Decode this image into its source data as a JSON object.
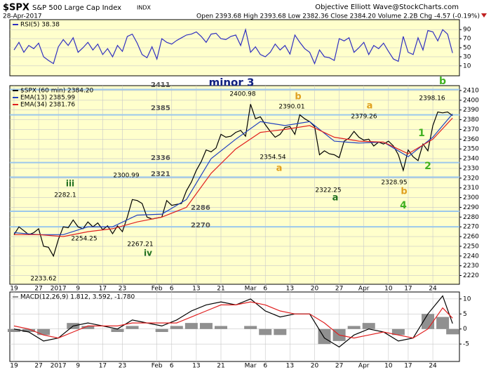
{
  "header": {
    "symbol": "$SPX",
    "name": "S&P 500 Large Cap Index",
    "exchange": "INDX",
    "date": "28-Apr-2017",
    "quote": "Open 2393.68  High 2393.68  Low 2382.36  Close 2384.20  Volume 2.2B  Chg -4.57 (-0.19%)",
    "source": "Objective Elliott Wave@StockCharts.com"
  },
  "chart_data": [
    {
      "type": "line",
      "background": "#ffffcc",
      "xlim": [
        -0.85,
        90.4
      ],
      "ylim": [
        -12,
        112
      ],
      "yticks": [
        10,
        30,
        50,
        70,
        90
      ],
      "series": [
        {
          "name": "RSI(5) 38.38",
          "color": "#3030c0",
          "x": [
            0,
            1,
            2,
            3,
            4,
            5,
            6,
            7,
            8,
            9,
            10,
            11,
            12,
            13,
            14,
            15,
            16,
            17,
            18,
            19,
            20,
            21,
            22,
            23,
            24,
            25,
            26,
            27,
            28,
            29,
            30,
            31,
            32,
            33,
            34,
            35,
            36,
            37,
            38,
            39,
            40,
            41,
            42,
            43,
            44,
            45,
            46,
            47,
            48,
            49,
            50,
            51,
            52,
            53,
            54,
            55,
            56,
            57,
            58,
            59,
            60,
            61,
            62,
            63,
            64,
            65,
            66,
            67,
            68,
            69,
            70,
            71,
            72,
            73,
            74,
            75,
            76,
            77,
            78,
            79,
            80,
            81,
            82,
            83,
            84,
            85,
            86,
            87,
            88,
            89
          ],
          "values": [
            45,
            62,
            40,
            55,
            48,
            60,
            30,
            22,
            15,
            52,
            68,
            55,
            72,
            40,
            50,
            62,
            45,
            58,
            35,
            48,
            30,
            55,
            42,
            75,
            80,
            60,
            35,
            28,
            52,
            25,
            70,
            62,
            58,
            66,
            72,
            78,
            80,
            85,
            75,
            62,
            80,
            82,
            70,
            68,
            75,
            78,
            55,
            90,
            40,
            52,
            35,
            30,
            40,
            58,
            45,
            55,
            36,
            78,
            62,
            48,
            40,
            15,
            45,
            30,
            28,
            22,
            70,
            65,
            72,
            40,
            50,
            62,
            35,
            55,
            48,
            60,
            42,
            25,
            20,
            75,
            40,
            35,
            72,
            45,
            88,
            85,
            65,
            90,
            80,
            38.38
          ]
        }
      ]
    },
    {
      "type": "line",
      "background": "#ffffcc",
      "xlim": [
        -0.85,
        90.4
      ],
      "ylim": [
        2211,
        2415
      ],
      "yticks": [
        2220,
        2230,
        2240,
        2250,
        2260,
        2270,
        2280,
        2290,
        2300,
        2310,
        2320,
        2330,
        2340,
        2350,
        2360,
        2370,
        2380,
        2390,
        2400,
        2410
      ],
      "xticks": [
        {
          "value": 0,
          "label": "19"
        },
        {
          "value": 5,
          "label": "27"
        },
        {
          "value": 9,
          "label": "2017"
        },
        {
          "value": 13,
          "label": "9"
        },
        {
          "value": 18,
          "label": "17"
        },
        {
          "value": 22,
          "label": "23"
        },
        {
          "value": 29,
          "label": "Feb"
        },
        {
          "value": 32,
          "label": "6"
        },
        {
          "value": 37,
          "label": "13"
        },
        {
          "value": 42,
          "label": "21"
        },
        {
          "value": 48,
          "label": "Mar"
        },
        {
          "value": 51,
          "label": "6"
        },
        {
          "value": 56,
          "label": "13"
        },
        {
          "value": 61,
          "label": "20"
        },
        {
          "value": 66,
          "label": "27"
        },
        {
          "value": 71,
          "label": "Apr"
        },
        {
          "value": 76,
          "label": "10"
        },
        {
          "value": 80,
          "label": "17"
        },
        {
          "value": 85,
          "label": "24"
        }
      ],
      "levels": [
        2411,
        2385,
        2336,
        2321,
        2286,
        2270
      ],
      "level_color": "#9cc8ec",
      "series": [
        {
          "name": "$SPX (60 min) 2384.20",
          "color": "#000000",
          "x": [
            0,
            1,
            2,
            3,
            4,
            5,
            6,
            7,
            8,
            9,
            10,
            11,
            12,
            13,
            14,
            15,
            16,
            17,
            18,
            19,
            20,
            21,
            22,
            23,
            24,
            25,
            26,
            27,
            28,
            29,
            30,
            31,
            32,
            33,
            34,
            35,
            36,
            37,
            38,
            39,
            40,
            41,
            42,
            43,
            44,
            45,
            46,
            47,
            48,
            49,
            50,
            51,
            52,
            53,
            54,
            55,
            56,
            57,
            58,
            59,
            60,
            61,
            62,
            63,
            64,
            65,
            66,
            67,
            68,
            69,
            70,
            71,
            72,
            73,
            74,
            75,
            76,
            77,
            78,
            79,
            80,
            81,
            82,
            83,
            84,
            85,
            86,
            87,
            88,
            89
          ],
          "values": [
            2262,
            2270,
            2266,
            2262,
            2264,
            2268,
            2250,
            2249,
            2240,
            2257,
            2270,
            2269,
            2277,
            2270,
            2268,
            2275,
            2270,
            2274,
            2267,
            2271,
            2263,
            2271,
            2265,
            2280,
            2298,
            2297,
            2294,
            2280,
            2278,
            2279,
            2280,
            2297,
            2292,
            2293,
            2294,
            2307,
            2316,
            2328,
            2337,
            2349,
            2347,
            2351,
            2365,
            2362,
            2363,
            2367,
            2369,
            2363,
            2396,
            2381,
            2383,
            2375,
            2368,
            2362,
            2365,
            2372,
            2373,
            2365,
            2385,
            2381,
            2378,
            2373,
            2344,
            2348,
            2345,
            2344,
            2341,
            2358,
            2361,
            2368,
            2362,
            2359,
            2360,
            2353,
            2357,
            2355,
            2358,
            2353,
            2344,
            2328,
            2349,
            2342,
            2338,
            2355,
            2348,
            2374,
            2388,
            2387,
            2388,
            2384.2
          ]
        },
        {
          "name": "EMA(13) 2385.99",
          "color": "#2040c0",
          "x": [
            0,
            5,
            10,
            15,
            20,
            25,
            30,
            35,
            40,
            45,
            50,
            55,
            60,
            65,
            70,
            75,
            80,
            85,
            89
          ],
          "values": [
            2264,
            2262,
            2262,
            2270,
            2270,
            2282,
            2283,
            2298,
            2340,
            2360,
            2378,
            2374,
            2378,
            2358,
            2356,
            2357,
            2342,
            2362,
            2385.99
          ]
        },
        {
          "name": "EMA(34) 2381.76",
          "color": "#e02020",
          "x": [
            0,
            5,
            10,
            15,
            20,
            25,
            30,
            35,
            40,
            45,
            50,
            55,
            60,
            65,
            70,
            75,
            80,
            85,
            89
          ],
          "values": [
            2262,
            2262,
            2260,
            2265,
            2268,
            2275,
            2280,
            2290,
            2325,
            2350,
            2367,
            2370,
            2374,
            2362,
            2358,
            2357,
            2345,
            2360,
            2381.76
          ]
        }
      ],
      "point_labels": [
        2233.62,
        2282.1,
        2300.99,
        2254.25,
        2267.21,
        2400.98,
        2390.01,
        2354.54,
        2322.25,
        2379.26,
        2328.95,
        2398.16
      ],
      "wave_labels": [
        {
          "text": "iii",
          "color": "#207020"
        },
        {
          "text": "iv",
          "color": "#207020"
        },
        {
          "text": "minor 3",
          "color": "#102080"
        },
        {
          "text": "b",
          "color": "#e0a020"
        },
        {
          "text": "a",
          "color": "#e0a020"
        },
        {
          "text": "a",
          "color": "#207020"
        },
        {
          "text": "a",
          "color": "#e0a020"
        },
        {
          "text": "b",
          "color": "#e0a020"
        },
        {
          "text": "4",
          "color": "#40b020"
        },
        {
          "text": "1",
          "color": "#40b020"
        },
        {
          "text": "2",
          "color": "#40b020"
        },
        {
          "text": "b",
          "color": "#40b020"
        }
      ]
    },
    {
      "type": "line",
      "background": "#ffffff",
      "xlim": [
        -0.85,
        90.4
      ],
      "ylim": [
        -10.8,
        12.3
      ],
      "yticks": [
        10,
        5,
        0,
        -5
      ],
      "xticks": [
        {
          "value": 0,
          "label": "19"
        },
        {
          "value": 5,
          "label": "27"
        },
        {
          "value": 9,
          "label": "2017"
        },
        {
          "value": 13,
          "label": "9"
        },
        {
          "value": 18,
          "label": "17"
        },
        {
          "value": 22,
          "label": "23"
        },
        {
          "value": 29,
          "label": "Feb"
        },
        {
          "value": 32,
          "label": "6"
        },
        {
          "value": 37,
          "label": "13"
        },
        {
          "value": 42,
          "label": "21"
        },
        {
          "value": 48,
          "label": "Mar"
        },
        {
          "value": 51,
          "label": "6"
        },
        {
          "value": 56,
          "label": "13"
        },
        {
          "value": 61,
          "label": "20"
        },
        {
          "value": 66,
          "label": "27"
        },
        {
          "value": 71,
          "label": "Apr"
        },
        {
          "value": 76,
          "label": "10"
        },
        {
          "value": 80,
          "label": "17"
        },
        {
          "value": 85,
          "label": "24"
        }
      ],
      "series": [
        {
          "name": "MACD(12,26,9) 1.812, 3.592, -1.780",
          "type": "bar",
          "color": "#909090",
          "x": [
            0,
            3,
            6,
            9,
            12,
            15,
            18,
            21,
            24,
            27,
            30,
            33,
            36,
            39,
            42,
            45,
            48,
            51,
            54,
            57,
            60,
            63,
            66,
            69,
            72,
            75,
            78,
            81,
            84,
            87,
            89
          ],
          "values": [
            -1,
            -1,
            -2,
            0,
            2,
            1,
            0,
            -1,
            1,
            0,
            -1,
            1,
            2,
            2,
            1,
            0,
            1,
            -2,
            -2,
            0,
            0,
            -5,
            -4,
            1,
            2,
            0,
            -2,
            0,
            5,
            4,
            -1.78
          ]
        },
        {
          "type": "line",
          "color": "#000000",
          "x": [
            0,
            3,
            6,
            9,
            12,
            15,
            18,
            21,
            24,
            27,
            30,
            33,
            36,
            39,
            42,
            45,
            48,
            51,
            54,
            57,
            60,
            63,
            66,
            69,
            72,
            75,
            78,
            81,
            84,
            87,
            89
          ],
          "values": [
            0,
            -1,
            -4,
            -3,
            1,
            2,
            1,
            0,
            3,
            2,
            1,
            3,
            6,
            8,
            9,
            8,
            10,
            6,
            4,
            5,
            5,
            -3,
            -6,
            -2,
            0,
            -1,
            -4,
            -3,
            5,
            11,
            1.812
          ]
        },
        {
          "type": "line",
          "color": "#e02020",
          "x": [
            0,
            3,
            6,
            9,
            12,
            15,
            18,
            21,
            24,
            27,
            30,
            33,
            36,
            39,
            42,
            45,
            48,
            51,
            54,
            57,
            60,
            63,
            66,
            69,
            72,
            75,
            78,
            81,
            84,
            87,
            89
          ],
          "values": [
            1,
            0,
            -2,
            -3,
            -1,
            1,
            1,
            1,
            2,
            2,
            2,
            2,
            4,
            6,
            8,
            8,
            9,
            8,
            6,
            5,
            5,
            2,
            -2,
            -3,
            -2,
            -1,
            -2,
            -3,
            0,
            7,
            3.592
          ]
        }
      ]
    }
  ]
}
